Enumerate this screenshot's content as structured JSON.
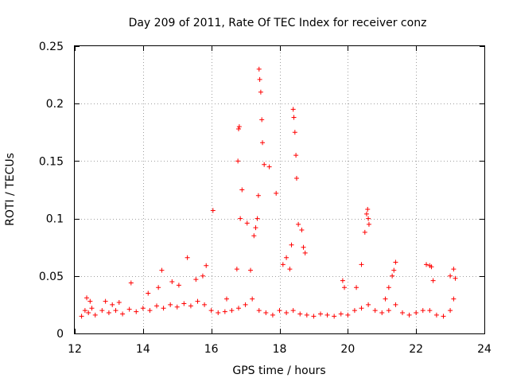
{
  "chart_data": {
    "type": "scatter",
    "title": "Day 209 of 2011, Rate Of TEC Index for receiver conz",
    "xlabel": "GPS time / hours",
    "ylabel": "ROTI / TECUs",
    "xlim": [
      12,
      24
    ],
    "ylim": [
      0,
      0.25
    ],
    "x_ticks": [
      12,
      14,
      16,
      18,
      20,
      22,
      24
    ],
    "x_tick_labels": [
      "12",
      "14",
      "16",
      "18",
      "20",
      "22",
      "24"
    ],
    "y_ticks": [
      0,
      0.05,
      0.1,
      0.15,
      0.2,
      0.25
    ],
    "y_tick_labels": [
      "0",
      "0.05",
      "0.1",
      "0.15",
      "0.2",
      "0.25"
    ],
    "grid": true,
    "marker": "plus",
    "series": [
      {
        "name": "ROTI",
        "color": "#ff0000",
        "x": [
          12.2,
          12.3,
          12.4,
          12.5,
          12.6,
          12.8,
          13.0,
          13.2,
          13.4,
          13.6,
          13.8,
          14.0,
          14.2,
          14.4,
          14.6,
          14.8,
          15.0,
          15.2,
          15.4,
          15.6,
          15.8,
          16.0,
          16.2,
          16.4,
          16.6,
          16.8,
          17.0,
          17.2,
          17.4,
          17.6,
          17.8,
          18.0,
          18.2,
          18.4,
          18.6,
          18.8,
          19.0,
          19.2,
          19.4,
          19.6,
          19.8,
          20.0,
          20.2,
          20.4,
          20.6,
          20.8,
          21.0,
          21.2,
          21.4,
          21.6,
          21.8,
          22.0,
          22.2,
          22.4,
          22.6,
          22.8,
          23.0,
          23.1,
          12.35,
          12.45,
          12.9,
          13.1,
          13.3,
          13.65,
          14.15,
          14.45,
          14.55,
          14.85,
          15.05,
          15.3,
          15.55,
          15.75,
          15.85,
          16.05,
          16.45,
          16.75,
          16.78,
          16.8,
          16.82,
          16.85,
          16.9,
          17.05,
          17.15,
          17.25,
          17.3,
          17.35,
          17.38,
          17.4,
          17.42,
          17.45,
          17.48,
          17.5,
          17.55,
          17.7,
          17.9,
          18.1,
          18.2,
          18.3,
          18.35,
          18.4,
          18.42,
          18.45,
          18.48,
          18.5,
          18.55,
          18.65,
          18.7,
          18.75,
          19.85,
          19.9,
          20.25,
          20.4,
          20.5,
          20.55,
          20.58,
          20.6,
          20.62,
          21.1,
          21.2,
          21.3,
          21.35,
          21.4,
          22.3,
          22.4,
          22.45,
          22.5,
          23.0,
          23.1,
          23.15
        ],
        "y": [
          0.015,
          0.02,
          0.018,
          0.022,
          0.016,
          0.02,
          0.018,
          0.02,
          0.017,
          0.021,
          0.019,
          0.022,
          0.02,
          0.024,
          0.022,
          0.025,
          0.023,
          0.026,
          0.024,
          0.028,
          0.025,
          0.02,
          0.018,
          0.019,
          0.02,
          0.022,
          0.025,
          0.03,
          0.02,
          0.018,
          0.016,
          0.02,
          0.018,
          0.02,
          0.017,
          0.016,
          0.015,
          0.017,
          0.016,
          0.015,
          0.017,
          0.016,
          0.02,
          0.022,
          0.025,
          0.02,
          0.018,
          0.02,
          0.025,
          0.018,
          0.016,
          0.018,
          0.02,
          0.02,
          0.016,
          0.015,
          0.02,
          0.03,
          0.031,
          0.028,
          0.028,
          0.025,
          0.027,
          0.044,
          0.035,
          0.04,
          0.055,
          0.045,
          0.042,
          0.066,
          0.047,
          0.05,
          0.059,
          0.107,
          0.03,
          0.056,
          0.15,
          0.178,
          0.18,
          0.1,
          0.125,
          0.096,
          0.055,
          0.085,
          0.092,
          0.1,
          0.12,
          0.23,
          0.221,
          0.21,
          0.186,
          0.166,
          0.147,
          0.145,
          0.122,
          0.06,
          0.066,
          0.056,
          0.077,
          0.195,
          0.188,
          0.175,
          0.155,
          0.135,
          0.095,
          0.09,
          0.075,
          0.07,
          0.046,
          0.04,
          0.04,
          0.06,
          0.088,
          0.104,
          0.108,
          0.1,
          0.095,
          0.03,
          0.04,
          0.05,
          0.055,
          0.062,
          0.06,
          0.059,
          0.058,
          0.046,
          0.05,
          0.056,
          0.048
        ]
      }
    ]
  }
}
